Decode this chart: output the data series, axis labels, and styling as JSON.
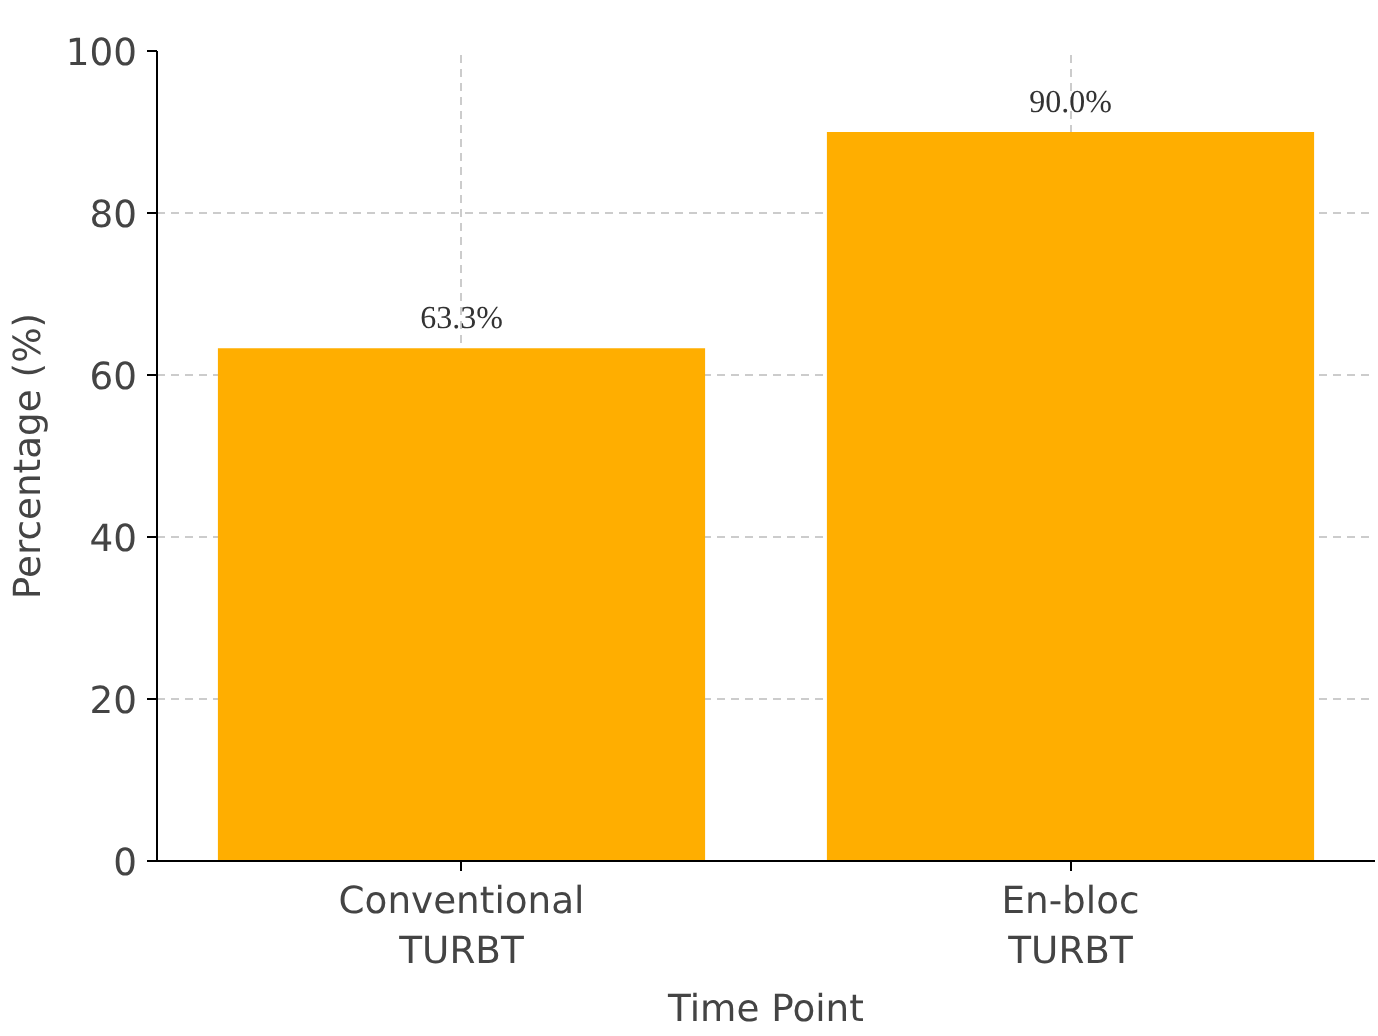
{
  "chart_data": {
    "type": "bar",
    "xlabel": "Time Point",
    "ylabel": "Percentage (%)",
    "categories": [
      "Conventional\nTURBT",
      "En-bloc\nTURBT"
    ],
    "values": [
      63.3,
      90.0
    ],
    "color": "#ffae00",
    "value_labels": [
      "63.3%",
      "90.0%"
    ],
    "ylim": [
      0,
      100
    ],
    "yticks": [
      0,
      20,
      40,
      60,
      80,
      100
    ],
    "grid": true
  }
}
